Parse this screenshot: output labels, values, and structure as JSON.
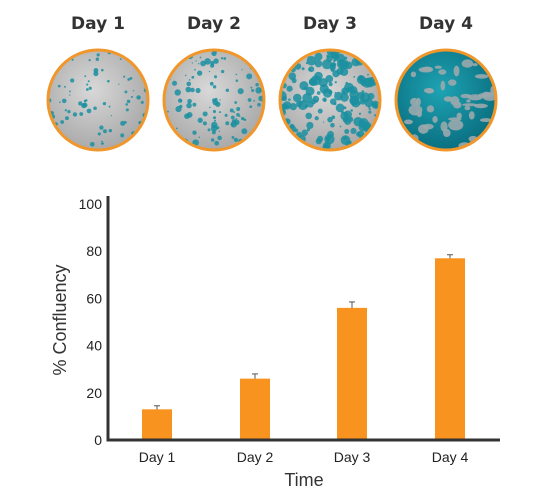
{
  "dish_labels": [
    "Day 1",
    "Day 2",
    "Day 3",
    "Day 4"
  ],
  "colors": {
    "bar": "#f7931e",
    "dish_rim": "#f0962a",
    "cell_stain": "#1a8fa0",
    "axis": "#333333"
  },
  "chart_data": {
    "type": "bar",
    "categories": [
      "Day 1",
      "Day 2",
      "Day 3",
      "Day 4"
    ],
    "values": [
      13,
      26,
      56,
      77
    ],
    "error": [
      1.5,
      2,
      2.5,
      1.5
    ],
    "xlabel": "Time",
    "ylabel": "% Confluency",
    "ylim": [
      0,
      100
    ],
    "yticks": [
      0,
      20,
      40,
      60,
      80,
      100
    ],
    "grid": false
  }
}
